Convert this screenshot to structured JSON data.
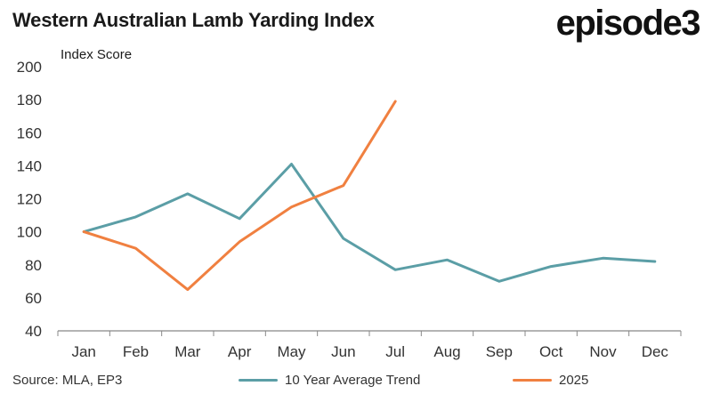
{
  "header": {
    "title": "Western Australian Lamb Yarding Index",
    "brand": "episode3"
  },
  "footer": {
    "source": "Source: MLA, EP3"
  },
  "colors": {
    "series_trend": "#5b9ea6",
    "series_2025": "#f08040",
    "axis": "#888888"
  },
  "chart_data": {
    "type": "line",
    "title": "Western Australian Lamb Yarding Index",
    "ylabel": "Index Score",
    "xlabel": "",
    "ylim": [
      40,
      200
    ],
    "yticks": [
      "40",
      "60",
      "80",
      "100",
      "120",
      "140",
      "160",
      "180",
      "200"
    ],
    "grid": false,
    "legend_position": "bottom",
    "categories": [
      "Jan",
      "Feb",
      "Mar",
      "Apr",
      "May",
      "Jun",
      "Jul",
      "Aug",
      "Sep",
      "Oct",
      "Nov",
      "Dec"
    ],
    "series": [
      {
        "name": "10 Year Average Trend",
        "values": [
          100,
          109,
          123,
          108,
          141,
          96,
          77,
          83,
          70,
          79,
          84,
          82
        ]
      },
      {
        "name": "2025",
        "values": [
          100,
          90,
          65,
          94,
          115,
          128,
          179,
          null,
          null,
          null,
          null,
          null
        ]
      }
    ]
  }
}
